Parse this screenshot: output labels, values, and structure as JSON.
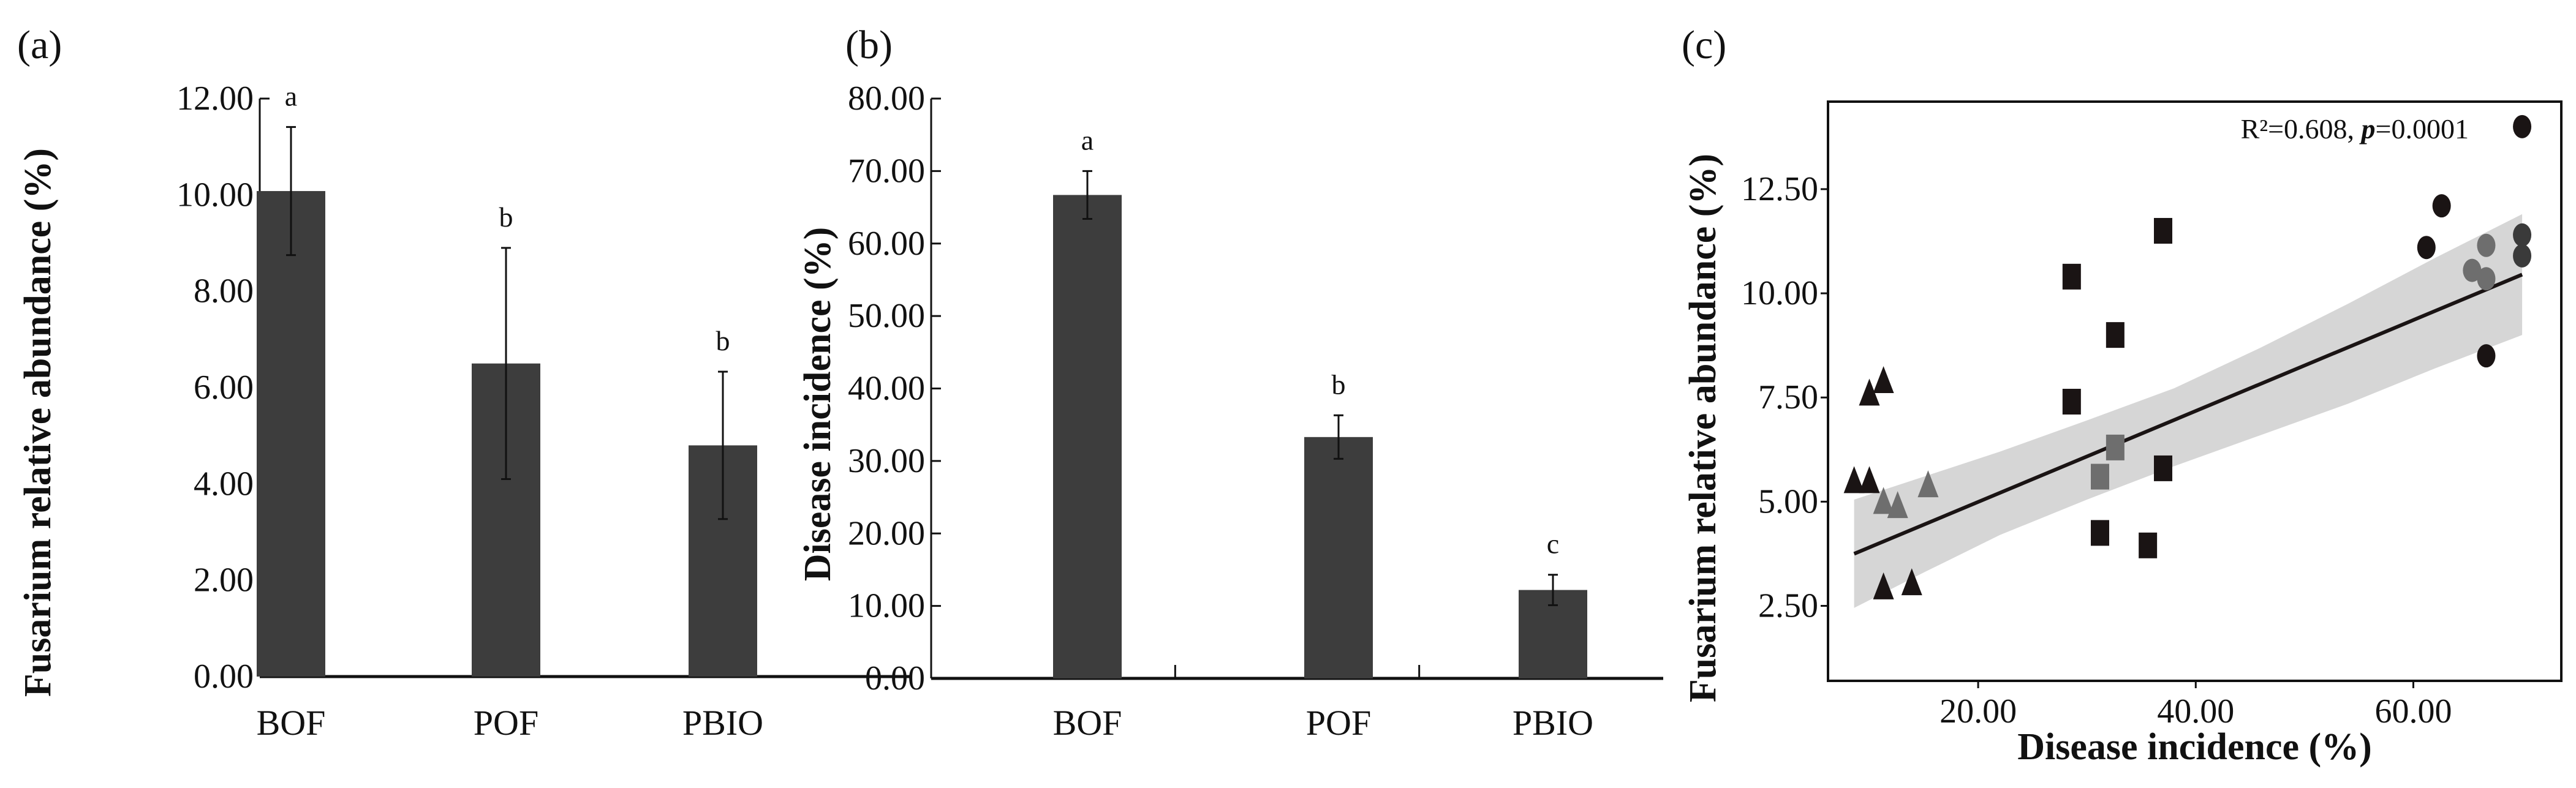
{
  "chart_data": [
    {
      "type": "bar",
      "panel_label": "(a)",
      "categories": [
        "BOF",
        "POF",
        "PBIO"
      ],
      "values": [
        10.08,
        6.5,
        4.8
      ],
      "errors": [
        1.33,
        2.4,
        1.53
      ],
      "significance": [
        "a",
        "b",
        "b"
      ],
      "ylabel": "Fusarium relative abundance (%)",
      "ylim": [
        0,
        12
      ],
      "yticks": [
        "0.00",
        "2.00",
        "4.00",
        "6.00",
        "8.00",
        "10.00",
        "12.00"
      ],
      "bar_color": "#3d3d3d"
    },
    {
      "type": "bar",
      "panel_label": "(b)",
      "categories": [
        "BOF",
        "POF",
        "PBIO"
      ],
      "values": [
        66.7,
        33.3,
        12.2
      ],
      "errors": [
        3.3,
        3.0,
        2.1
      ],
      "significance": [
        "a",
        "b",
        "c"
      ],
      "ylabel": "Disease incidence (%)",
      "ylim": [
        0,
        80
      ],
      "yticks": [
        "0.00",
        "10.00",
        "20.00",
        "30.00",
        "40.00",
        "50.00",
        "60.00",
        "70.00",
        "80.00"
      ],
      "bar_color": "#3d3d3d"
    },
    {
      "type": "scatter",
      "panel_label": "(c)",
      "xlabel": "Disease incidence (%)",
      "ylabel": "Fusarium relative abundance (%)",
      "xlim": [
        6.2,
        73.6
      ],
      "ylim": [
        0.7,
        14.6
      ],
      "xticks": [
        {
          "v": 20,
          "t": "20.00"
        },
        {
          "v": 40,
          "t": "40.00"
        },
        {
          "v": 60,
          "t": "60.00"
        }
      ],
      "yticks": [
        {
          "v": 2.5,
          "t": "2.50"
        },
        {
          "v": 5,
          "t": "5.00"
        },
        {
          "v": 7.5,
          "t": "7.50"
        },
        {
          "v": 10,
          "t": "10.00"
        },
        {
          "v": 12.5,
          "t": "12.50"
        }
      ],
      "annotation": {
        "r2": "R²=0.608, ",
        "p_label": "p",
        "p_value": "=0.0001"
      },
      "points": [
        {
          "x": 8.6,
          "y": 5.5,
          "shape": "triangle",
          "color": "#1a1414"
        },
        {
          "x": 10.0,
          "y": 5.5,
          "shape": "triangle",
          "color": "#1a1414"
        },
        {
          "x": 10.0,
          "y": 7.6,
          "shape": "triangle",
          "color": "#1a1414"
        },
        {
          "x": 11.3,
          "y": 7.9,
          "shape": "triangle",
          "color": "#1a1414"
        },
        {
          "x": 13.9,
          "y": 3.05,
          "shape": "triangle",
          "color": "#1a1414"
        },
        {
          "x": 11.3,
          "y": 2.95,
          "shape": "triangle",
          "color": "#1a1414"
        },
        {
          "x": 11.3,
          "y": 5.0,
          "shape": "triangle",
          "color": "#6e6e6e"
        },
        {
          "x": 12.6,
          "y": 4.9,
          "shape": "triangle",
          "color": "#6e6e6e"
        },
        {
          "x": 15.4,
          "y": 5.4,
          "shape": "triangle",
          "color": "#6e6e6e"
        },
        {
          "x": 28.6,
          "y": 10.4,
          "shape": "square",
          "color": "#1a1414"
        },
        {
          "x": 28.6,
          "y": 7.4,
          "shape": "square",
          "color": "#1a1414"
        },
        {
          "x": 32.6,
          "y": 9.0,
          "shape": "square",
          "color": "#1a1414"
        },
        {
          "x": 37.0,
          "y": 11.5,
          "shape": "square",
          "color": "#1a1414"
        },
        {
          "x": 37.0,
          "y": 5.8,
          "shape": "square",
          "color": "#1a1414"
        },
        {
          "x": 31.2,
          "y": 4.25,
          "shape": "square",
          "color": "#1a1414"
        },
        {
          "x": 35.6,
          "y": 3.95,
          "shape": "square",
          "color": "#1a1414"
        },
        {
          "x": 32.6,
          "y": 6.3,
          "shape": "square",
          "color": "#6e6e6e"
        },
        {
          "x": 31.2,
          "y": 5.6,
          "shape": "square",
          "color": "#6e6e6e"
        },
        {
          "x": 70.0,
          "y": 14.0,
          "shape": "circle",
          "color": "#1a1414"
        },
        {
          "x": 62.6,
          "y": 12.1,
          "shape": "circle",
          "color": "#1a1414"
        },
        {
          "x": 61.2,
          "y": 11.1,
          "shape": "circle",
          "color": "#1a1414"
        },
        {
          "x": 66.7,
          "y": 8.5,
          "shape": "circle",
          "color": "#1a1414"
        },
        {
          "x": 70.0,
          "y": 11.4,
          "shape": "circle",
          "color": "#3a3a3a"
        },
        {
          "x": 70.0,
          "y": 10.9,
          "shape": "circle",
          "color": "#3a3a3a"
        },
        {
          "x": 66.7,
          "y": 11.15,
          "shape": "circle",
          "color": "#6e6e6e"
        },
        {
          "x": 65.4,
          "y": 10.55,
          "shape": "circle",
          "color": "#6e6e6e"
        },
        {
          "x": 66.7,
          "y": 10.35,
          "shape": "circle",
          "color": "#6e6e6e"
        }
      ],
      "fit": {
        "x": [
          8.6,
          70.0
        ],
        "y": [
          3.75,
          10.45
        ]
      },
      "ci_band": {
        "x": [
          8.6,
          15,
          22,
          30,
          38,
          46,
          54,
          62,
          70
        ],
        "upper": [
          5.05,
          5.6,
          6.2,
          6.95,
          7.72,
          8.7,
          9.75,
          10.85,
          11.9
        ],
        "lower": [
          2.45,
          3.3,
          4.2,
          5.05,
          5.85,
          6.6,
          7.35,
          8.2,
          9.0
        ]
      },
      "band_color": "#d6d6d6"
    }
  ]
}
